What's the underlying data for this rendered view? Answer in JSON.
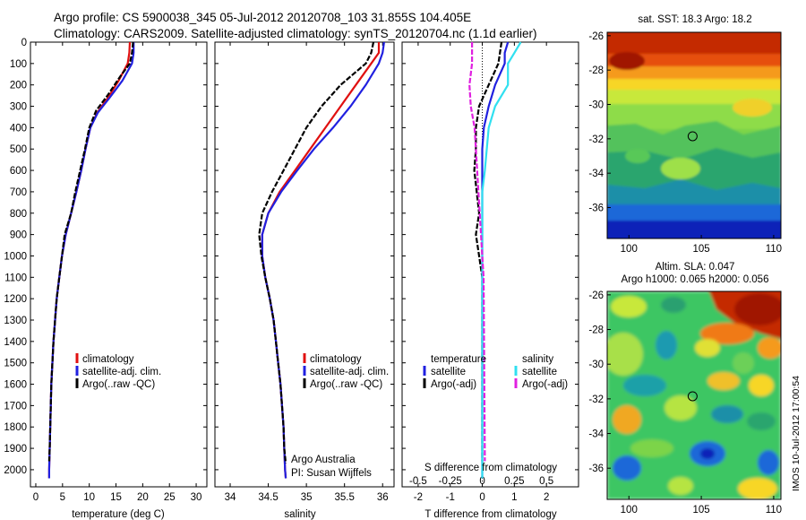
{
  "header": {
    "title_line1": "Argo profile: CS 5900038_345 05-Jul-2012 20120708_103 31.855S 104.405E",
    "title_line2": "Climatology: CARS2009. Satellite-adjusted climatology: synTS_20120704.nc (1.1d earlier)"
  },
  "footer": {
    "credit": "IMOS 10-Jul-2012 17:00:54"
  },
  "colors": {
    "red": "#e01010",
    "blue": "#2020e0",
    "black": "#000000",
    "cyan": "#30e0f0",
    "magenta": "#e020e0"
  },
  "chart_data": [
    {
      "type": "line",
      "xlabel": "temperature (deg C)",
      "ylabel": "",
      "xlim": [
        -1,
        32
      ],
      "ylim": [
        2080,
        0
      ],
      "y_reversed": true,
      "xticks": [
        "0",
        "5",
        "10",
        "15",
        "20",
        "25",
        "30"
      ],
      "yticks": [
        "0",
        "100",
        "200",
        "300",
        "400",
        "500",
        "600",
        "700",
        "800",
        "900",
        "1000",
        "1100",
        "1200",
        "1300",
        "1400",
        "1500",
        "1600",
        "1700",
        "1800",
        "1900",
        "2000"
      ],
      "legend": [
        "climatology",
        "satellite-adj. clim.",
        "Argo(..raw -QC)"
      ],
      "series": [
        {
          "name": "climatology",
          "color": "red",
          "points": [
            [
              17.6,
              0
            ],
            [
              17.5,
              50
            ],
            [
              17.2,
              100
            ],
            [
              15.5,
              180
            ],
            [
              13.5,
              260
            ],
            [
              11.5,
              330
            ],
            [
              10.2,
              400
            ],
            [
              9.3,
              500
            ],
            [
              8.5,
              600
            ],
            [
              7.6,
              700
            ],
            [
              6.6,
              800
            ],
            [
              5.6,
              900
            ],
            [
              4.9,
              1000
            ],
            [
              4.4,
              1100
            ],
            [
              3.9,
              1200
            ],
            [
              3.6,
              1300
            ],
            [
              3.3,
              1400
            ],
            [
              3.1,
              1500
            ],
            [
              2.9,
              1600
            ],
            [
              2.8,
              1700
            ],
            [
              2.7,
              1800
            ],
            [
              2.6,
              1900
            ],
            [
              2.5,
              2000
            ],
            [
              2.5,
              2040
            ]
          ]
        },
        {
          "name": "satellite-adj. clim.",
          "color": "blue",
          "points": [
            [
              18.3,
              0
            ],
            [
              18.3,
              50
            ],
            [
              18.0,
              100
            ],
            [
              16.2,
              180
            ],
            [
              13.8,
              260
            ],
            [
              11.6,
              330
            ],
            [
              10.2,
              400
            ],
            [
              9.3,
              500
            ],
            [
              8.5,
              600
            ],
            [
              7.6,
              700
            ],
            [
              6.6,
              800
            ],
            [
              5.6,
              900
            ],
            [
              4.9,
              1000
            ],
            [
              4.4,
              1100
            ],
            [
              3.9,
              1200
            ],
            [
              3.6,
              1300
            ],
            [
              3.3,
              1400
            ],
            [
              3.1,
              1500
            ],
            [
              2.9,
              1600
            ],
            [
              2.8,
              1700
            ],
            [
              2.7,
              1800
            ],
            [
              2.6,
              1900
            ],
            [
              2.5,
              2000
            ],
            [
              2.5,
              2040
            ]
          ]
        },
        {
          "name": "Argo(..raw -QC)",
          "color": "black",
          "points": [
            [
              18.2,
              0
            ],
            [
              18.0,
              50
            ],
            [
              17.6,
              100
            ],
            [
              15.8,
              160
            ],
            [
              13.4,
              250
            ],
            [
              11.3,
              320
            ],
            [
              10.0,
              400
            ],
            [
              9.2,
              500
            ],
            [
              8.3,
              600
            ],
            [
              7.4,
              700
            ],
            [
              6.6,
              800
            ],
            [
              5.4,
              900
            ],
            [
              4.9,
              1000
            ],
            [
              4.4,
              1100
            ],
            [
              3.9,
              1200
            ],
            [
              3.6,
              1300
            ],
            [
              3.3,
              1400
            ],
            [
              3.1,
              1500
            ],
            [
              2.9,
              1600
            ],
            [
              2.8,
              1700
            ],
            [
              2.7,
              1800
            ],
            [
              2.6,
              1900
            ],
            [
              2.5,
              1960
            ]
          ]
        }
      ]
    },
    {
      "type": "line",
      "xlabel": "salinity",
      "ylabel": "",
      "xlim": [
        33.8,
        36.15
      ],
      "ylim": [
        2080,
        0
      ],
      "y_reversed": true,
      "xticks": [
        "34",
        "34.5",
        "35",
        "35.5",
        "36"
      ],
      "legend": [
        "climatology",
        "satellite-adj. clim.",
        "Argo(..raw -QC)"
      ],
      "annotations": [
        "Argo Australia",
        "PI: Susan Wijffels"
      ],
      "series": [
        {
          "name": "climatology",
          "color": "red",
          "points": [
            [
              35.95,
              0
            ],
            [
              35.95,
              50
            ],
            [
              35.85,
              100
            ],
            [
              35.65,
              200
            ],
            [
              35.45,
              300
            ],
            [
              35.25,
              400
            ],
            [
              35.05,
              500
            ],
            [
              34.85,
              600
            ],
            [
              34.65,
              700
            ],
            [
              34.5,
              800
            ],
            [
              34.42,
              900
            ],
            [
              34.42,
              1000
            ],
            [
              34.46,
              1100
            ],
            [
              34.52,
              1200
            ],
            [
              34.57,
              1300
            ],
            [
              34.6,
              1400
            ],
            [
              34.63,
              1500
            ],
            [
              34.66,
              1600
            ],
            [
              34.68,
              1700
            ],
            [
              34.7,
              1800
            ],
            [
              34.71,
              1900
            ],
            [
              34.72,
              2000
            ],
            [
              34.73,
              2040
            ]
          ]
        },
        {
          "name": "satellite-adj. clim.",
          "color": "blue",
          "points": [
            [
              36.02,
              0
            ],
            [
              36.0,
              50
            ],
            [
              35.95,
              100
            ],
            [
              35.78,
              200
            ],
            [
              35.58,
              300
            ],
            [
              35.35,
              400
            ],
            [
              35.1,
              500
            ],
            [
              34.88,
              600
            ],
            [
              34.67,
              700
            ],
            [
              34.5,
              800
            ],
            [
              34.42,
              900
            ],
            [
              34.42,
              1000
            ],
            [
              34.46,
              1100
            ],
            [
              34.52,
              1200
            ],
            [
              34.57,
              1300
            ],
            [
              34.6,
              1400
            ],
            [
              34.63,
              1500
            ],
            [
              34.66,
              1600
            ],
            [
              34.68,
              1700
            ],
            [
              34.7,
              1800
            ],
            [
              34.71,
              1900
            ],
            [
              34.72,
              2000
            ],
            [
              34.73,
              2040
            ]
          ]
        },
        {
          "name": "Argo(..raw -QC)",
          "color": "black",
          "points": [
            [
              35.88,
              0
            ],
            [
              35.85,
              50
            ],
            [
              35.78,
              100
            ],
            [
              35.45,
              200
            ],
            [
              35.2,
              300
            ],
            [
              35.0,
              400
            ],
            [
              34.85,
              500
            ],
            [
              34.7,
              600
            ],
            [
              34.55,
              700
            ],
            [
              34.42,
              800
            ],
            [
              34.38,
              900
            ],
            [
              34.41,
              1000
            ],
            [
              34.46,
              1100
            ],
            [
              34.52,
              1200
            ],
            [
              34.57,
              1300
            ],
            [
              34.6,
              1400
            ],
            [
              34.63,
              1500
            ],
            [
              34.66,
              1600
            ],
            [
              34.68,
              1700
            ],
            [
              34.7,
              1800
            ],
            [
              34.71,
              1900
            ],
            [
              34.73,
              1970
            ]
          ]
        }
      ]
    },
    {
      "type": "line",
      "xlabel": "T difference from climatology",
      "xlabel_top": "S difference from climatology",
      "xlim": [
        -2.5,
        3.0
      ],
      "ylim": [
        2080,
        0
      ],
      "y_reversed": true,
      "xticks": [
        "-2",
        "-1",
        "0",
        "1",
        "2"
      ],
      "xticks_top": [
        "-0.5",
        "-0.25",
        "0",
        "0.25",
        "0.5"
      ],
      "legend_temperature": {
        "heading": "temperature",
        "items": [
          "satellite",
          "Argo(-adj)"
        ]
      },
      "legend_salinity": {
        "heading": "salinity",
        "items": [
          "satellite",
          "Argo(-adj)"
        ]
      },
      "series": [
        {
          "name": "temperature satellite",
          "color": "blue",
          "points": [
            [
              0.8,
              0
            ],
            [
              0.7,
              50
            ],
            [
              0.7,
              100
            ],
            [
              0.4,
              200
            ],
            [
              0.2,
              300
            ],
            [
              0.05,
              400
            ],
            [
              0,
              500
            ],
            [
              0,
              2040
            ]
          ]
        },
        {
          "name": "temperature Argo(-adj)",
          "color": "black",
          "points": [
            [
              0.6,
              0
            ],
            [
              0.5,
              100
            ],
            [
              0.2,
              200
            ],
            [
              -0.1,
              300
            ],
            [
              -0.2,
              400
            ],
            [
              -0.2,
              500
            ],
            [
              -0.25,
              600
            ],
            [
              -0.1,
              800
            ],
            [
              -0.2,
              900
            ],
            [
              -0.1,
              1000
            ],
            [
              0,
              1100
            ],
            [
              0,
              1960
            ]
          ]
        },
        {
          "name": "salinity satellite",
          "color": "cyan",
          "points": [
            [
              0.3,
              0
            ],
            [
              0.25,
              50
            ],
            [
              0.2,
              100
            ],
            [
              0.2,
              200
            ],
            [
              0.1,
              300
            ],
            [
              0.05,
              400
            ],
            [
              0.02,
              600
            ],
            [
              0,
              700
            ],
            [
              0,
              2040
            ]
          ]
        },
        {
          "name": "salinity Argo(-adj)",
          "color": "magenta",
          "points": [
            [
              -0.08,
              0
            ],
            [
              -0.08,
              100
            ],
            [
              -0.1,
              200
            ],
            [
              -0.09,
              300
            ],
            [
              -0.06,
              400
            ],
            [
              -0.05,
              500
            ],
            [
              -0.03,
              700
            ],
            [
              -0.02,
              800
            ],
            [
              -0.01,
              900
            ],
            [
              0,
              1000
            ],
            [
              0.01,
              1100
            ],
            [
              0.02,
              1960
            ]
          ]
        }
      ]
    },
    {
      "type": "heatmap",
      "title": "sat. SST: 18.3 Argo: 18.2",
      "xlim": [
        98.5,
        110.5
      ],
      "ylim": [
        -37.8,
        -25.8
      ],
      "xticks": [
        "100",
        "105",
        "110"
      ],
      "yticks": [
        "-26",
        "-28",
        "-30",
        "-32",
        "-34",
        "-36"
      ],
      "marker": {
        "lon": 104.4,
        "lat": -31.85
      }
    },
    {
      "type": "heatmap",
      "title_line1": "Altim. SLA: 0.047",
      "title_line2": "Argo h1000: 0.065 h2000: 0.056",
      "xlim": [
        98.5,
        110.5
      ],
      "ylim": [
        -37.8,
        -25.8
      ],
      "xticks": [
        "100",
        "105",
        "110"
      ],
      "yticks": [
        "-26",
        "-28",
        "-30",
        "-32",
        "-34",
        "-36"
      ],
      "marker": {
        "lon": 104.4,
        "lat": -31.85
      }
    }
  ]
}
